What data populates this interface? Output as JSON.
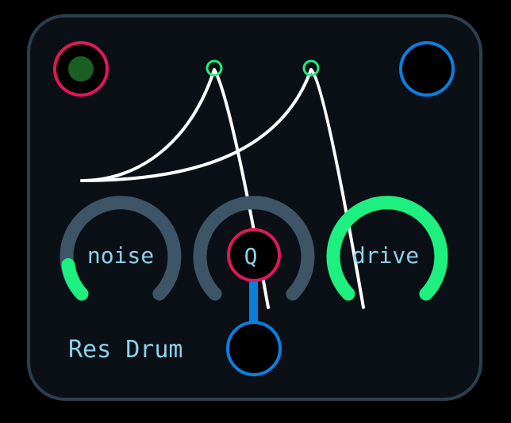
{
  "module": {
    "title": "Res Drum",
    "colors": {
      "panel_bg": "#0b1017",
      "panel_border": "#2c3f4e",
      "knob_track": "#3e5567",
      "knob_active": "#1df07f",
      "input_port": "#e0185a",
      "output_port": "#0a7fe0",
      "envelope_line": "#ffffff",
      "led_on": "#1b5e23",
      "text": "#8fd0e8"
    }
  },
  "ports": {
    "trigger_input": {
      "name": "trigger-input-port",
      "icon": "led-indicator-icon"
    },
    "audio_output_top": {
      "name": "audio-output-port"
    },
    "audio_output_bottom": {
      "name": "bottom-output-port"
    }
  },
  "knobs": [
    {
      "label": "noise",
      "value": 0.12
    },
    {
      "label": "Q",
      "value": 0.0
    },
    {
      "label": "drive",
      "value": 1.0
    }
  ]
}
